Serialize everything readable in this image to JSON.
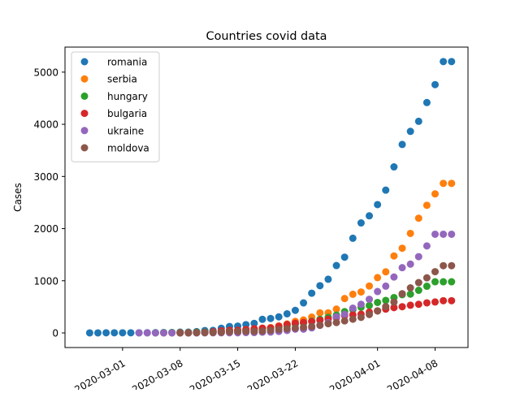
{
  "chart_data": {
    "type": "scatter",
    "title": "Countries covid data",
    "xlabel": "",
    "ylabel": "Cases",
    "x_axis_type": "date",
    "xlim": [
      "2020-02-23",
      "2020-04-12"
    ],
    "ylim": [
      -280,
      5480
    ],
    "x_ticks": [
      "2020-03-01",
      "2020-03-08",
      "2020-03-15",
      "2020-03-22",
      "2020-04-01",
      "2020-04-08"
    ],
    "y_ticks": [
      0,
      1000,
      2000,
      3000,
      4000,
      5000
    ],
    "grid": false,
    "legend_position": "top-left",
    "dates": [
      "2020-02-26",
      "2020-02-27",
      "2020-02-28",
      "2020-02-29",
      "2020-03-01",
      "2020-03-02",
      "2020-03-03",
      "2020-03-04",
      "2020-03-05",
      "2020-03-06",
      "2020-03-07",
      "2020-03-08",
      "2020-03-09",
      "2020-03-10",
      "2020-03-11",
      "2020-03-12",
      "2020-03-13",
      "2020-03-14",
      "2020-03-15",
      "2020-03-16",
      "2020-03-17",
      "2020-03-18",
      "2020-03-19",
      "2020-03-20",
      "2020-03-21",
      "2020-03-22",
      "2020-03-23",
      "2020-03-24",
      "2020-03-25",
      "2020-03-26",
      "2020-03-27",
      "2020-03-28",
      "2020-03-29",
      "2020-03-30",
      "2020-03-31",
      "2020-04-01",
      "2020-04-02",
      "2020-04-03",
      "2020-04-04",
      "2020-04-05",
      "2020-04-06",
      "2020-04-07",
      "2020-04-08",
      "2020-04-09",
      "2020-04-10"
    ],
    "series": [
      {
        "name": "romania",
        "color": "#1f77b4",
        "values": [
          1,
          1,
          3,
          3,
          3,
          3,
          3,
          4,
          6,
          9,
          9,
          15,
          15,
          25,
          45,
          49,
          89,
          123,
          131,
          158,
          184,
          260,
          277,
          308,
          367,
          433,
          576,
          762,
          906,
          1029,
          1292,
          1452,
          1815,
          2109,
          2245,
          2460,
          2738,
          3183,
          3613,
          3864,
          4057,
          4417,
          4761,
          5202,
          5202
        ]
      },
      {
        "name": "serbia",
        "color": "#ff7f0e",
        "values": [
          null,
          null,
          null,
          null,
          null,
          null,
          null,
          null,
          null,
          1,
          1,
          1,
          1,
          5,
          12,
          19,
          35,
          46,
          48,
          55,
          65,
          83,
          103,
          135,
          171,
          222,
          249,
          303,
          384,
          384,
          457,
          659,
          741,
          785,
          900,
          1060,
          1171,
          1476,
          1624,
          1908,
          2200,
          2447,
          2666,
          2867,
          2867
        ]
      },
      {
        "name": "hungary",
        "color": "#2ca02c",
        "values": [
          null,
          null,
          null,
          null,
          null,
          null,
          null,
          null,
          2,
          4,
          7,
          9,
          9,
          13,
          13,
          19,
          30,
          32,
          39,
          50,
          58,
          73,
          85,
          103,
          131,
          167,
          187,
          226,
          261,
          300,
          343,
          408,
          447,
          492,
          525,
          585,
          623,
          678,
          733,
          744,
          817,
          895,
          980,
          980,
          980
        ]
      },
      {
        "name": "bulgaria",
        "color": "#d62728",
        "values": [
          null,
          null,
          null,
          null,
          null,
          null,
          null,
          null,
          null,
          null,
          null,
          4,
          4,
          6,
          7,
          23,
          41,
          51,
          52,
          67,
          81,
          92,
          94,
          127,
          163,
          187,
          201,
          218,
          242,
          264,
          293,
          331,
          346,
          359,
          399,
          422,
          457,
          485,
          503,
          531,
          549,
          577,
          593,
          618,
          618
        ]
      },
      {
        "name": "ukraine",
        "color": "#9467bd",
        "values": [
          null,
          null,
          null,
          null,
          null,
          null,
          1,
          1,
          1,
          1,
          1,
          1,
          1,
          1,
          1,
          3,
          3,
          3,
          3,
          7,
          7,
          14,
          16,
          29,
          47,
          73,
          73,
          97,
          145,
          196,
          310,
          356,
          475,
          548,
          645,
          794,
          897,
          1072,
          1251,
          1319,
          1462,
          1668,
          1892,
          1892,
          1892
        ]
      },
      {
        "name": "moldova",
        "color": "#8c564b",
        "values": [
          null,
          null,
          null,
          null,
          null,
          null,
          null,
          null,
          null,
          null,
          null,
          1,
          1,
          3,
          6,
          8,
          12,
          23,
          29,
          30,
          30,
          36,
          49,
          66,
          80,
          94,
          109,
          125,
          149,
          177,
          199,
          231,
          263,
          298,
          353,
          423,
          505,
          591,
          752,
          864,
          965,
          1056,
          1174,
          1289,
          1289
        ]
      }
    ]
  }
}
